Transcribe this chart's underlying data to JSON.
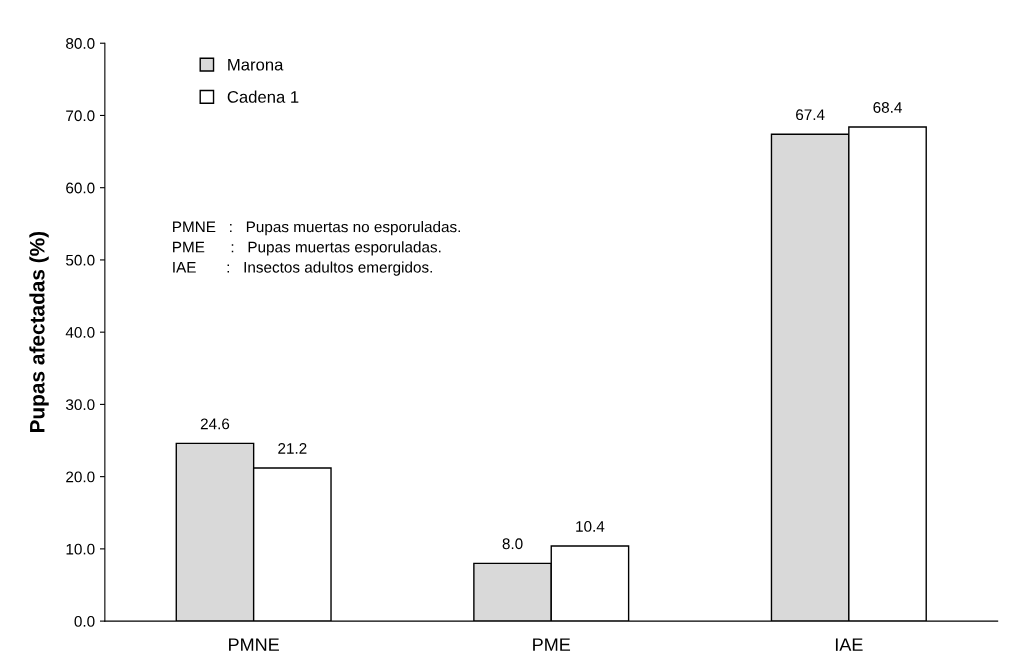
{
  "chart_data": {
    "type": "bar",
    "ylabel": "Pupas afectadas (%)",
    "categories": [
      "PMNE",
      "PME",
      "IAE"
    ],
    "series": [
      {
        "name": "Marona",
        "color": "#d9d9d9",
        "values": [
          24.6,
          8.0,
          67.4
        ],
        "value_labels": [
          "24.6",
          "8.0",
          "67.4"
        ]
      },
      {
        "name": "Cadena 1",
        "color": "#ffffff",
        "values": [
          21.2,
          10.4,
          68.4
        ],
        "value_labels": [
          "21.2",
          "10.4",
          "68.4"
        ]
      }
    ],
    "ylim": [
      0,
      80
    ],
    "yticks": [
      {
        "value": 0,
        "label": "0.0"
      },
      {
        "value": 10,
        "label": "10.0"
      },
      {
        "value": 20,
        "label": "20.0"
      },
      {
        "value": 30,
        "label": "30.0"
      },
      {
        "value": 40,
        "label": "40.0"
      },
      {
        "value": 50,
        "label": "50.0"
      },
      {
        "value": 60,
        "label": "60.0"
      },
      {
        "value": 70,
        "label": "70.0"
      },
      {
        "value": 80,
        "label": "80.0"
      }
    ],
    "grid": false,
    "legend": "top left",
    "annotations": [
      "PMNE   :   Pupas muertas no esporuladas.",
      "PME      :   Pupas muertas esporuladas.",
      "IAE       :   Insectos adultos emergidos."
    ]
  }
}
